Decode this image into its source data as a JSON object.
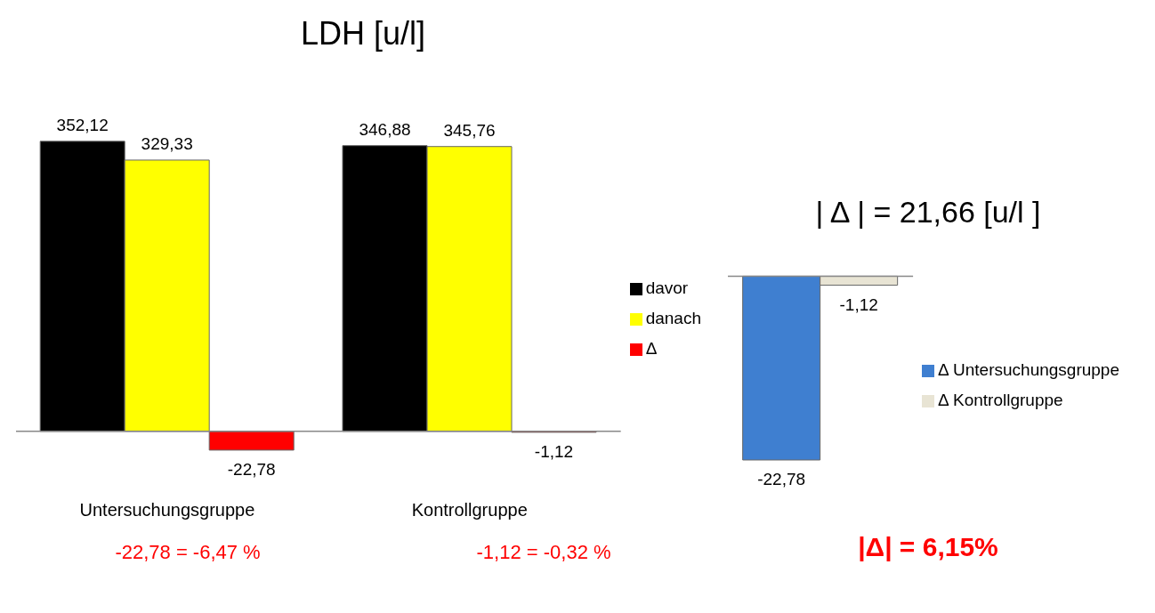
{
  "chart_data": [
    {
      "type": "bar",
      "title": "LDH [u/l]",
      "categories": [
        "Untersuchungsgruppe",
        "Kontrollgruppe"
      ],
      "series": [
        {
          "name": "davor",
          "color": "#000000",
          "values": [
            352.12,
            346.88
          ],
          "value_labels": [
            "352,12",
            "346,88"
          ]
        },
        {
          "name": "danach",
          "color": "#ffff00",
          "values": [
            329.33,
            345.76
          ],
          "value_labels": [
            "329,33",
            "345,76"
          ]
        },
        {
          "name": "Δ",
          "color": "#ff0000",
          "values": [
            -22.78,
            -1.12
          ],
          "value_labels": [
            "-22,78",
            "-1,12"
          ]
        }
      ],
      "legend": "right",
      "annotations": [
        "-22,78 = -6,47 %",
        "-1,12 = -0,32 %"
      ]
    },
    {
      "type": "bar",
      "title": "| Δ |  = 21,66 [u/l ]",
      "categories": [
        null
      ],
      "series": [
        {
          "name": "Δ Untersuchungsgruppe",
          "color": "#3f7fd0",
          "values": [
            -22.78
          ],
          "value_labels": [
            "-22,78"
          ]
        },
        {
          "name": "Δ Kontrollgruppe",
          "color": "#e8e4d4",
          "values": [
            -1.12
          ],
          "value_labels": [
            "-1,12"
          ]
        }
      ],
      "legend": "right",
      "annotations": [
        "|Δ| =  6,15%"
      ]
    }
  ]
}
